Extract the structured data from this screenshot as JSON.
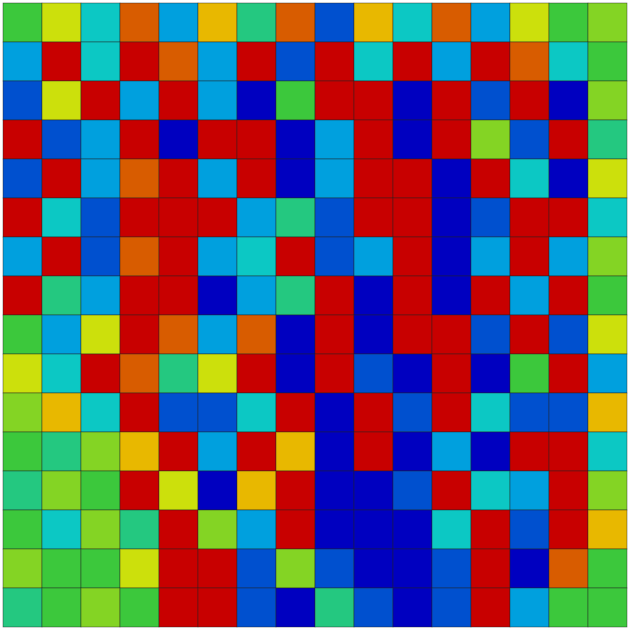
{
  "chart_data": {
    "type": "heatmap",
    "tick_labels": false,
    "zlim": [
      0,
      1
    ],
    "cells": [
      [
        0.5,
        0.7,
        0.3,
        0.9,
        0.2,
        0.8,
        0.4,
        0.9,
        0.1,
        0.8,
        0.3,
        0.9,
        0.2,
        0.7,
        0.5,
        0.6
      ],
      [
        0.2,
        1,
        0.3,
        1,
        0.9,
        0.2,
        1,
        0.1,
        1,
        0.3,
        1,
        0.2,
        1,
        0.9,
        0.3,
        0.5
      ],
      [
        0.1,
        0.7,
        1,
        0.2,
        1,
        0.2,
        0,
        0.5,
        1,
        1,
        0,
        1,
        0.1,
        1,
        0,
        0.6
      ],
      [
        1,
        0.1,
        0.2,
        1,
        0,
        1,
        1,
        0,
        0.2,
        1,
        0,
        1,
        0.6,
        0.1,
        1,
        0.4
      ],
      [
        0.1,
        1,
        0.2,
        0.9,
        1,
        0.2,
        1,
        0,
        0.2,
        1,
        1,
        0,
        1,
        0.3,
        0,
        0.7
      ],
      [
        1,
        0.3,
        0.1,
        1,
        1,
        1,
        0.2,
        0.4,
        0.1,
        1,
        1,
        0,
        0.1,
        1,
        1,
        0.3
      ],
      [
        0.2,
        1,
        0.1,
        0.9,
        1,
        0.2,
        0.3,
        1,
        0.1,
        0.2,
        1,
        0,
        0.2,
        1,
        0.2,
        0.6
      ],
      [
        1,
        0.4,
        0.2,
        1,
        1,
        0,
        0.2,
        0.4,
        1,
        0,
        1,
        0,
        1,
        0.2,
        1,
        0.5
      ],
      [
        0.5,
        0.2,
        0.7,
        1,
        0.9,
        0.2,
        0.9,
        0,
        1,
        0,
        1,
        1,
        0.1,
        1,
        0.1,
        0.7
      ],
      [
        0.7,
        0.3,
        1,
        0.9,
        0.4,
        0.7,
        1,
        0,
        1,
        0.1,
        0,
        1,
        0,
        0.5,
        1,
        0.2
      ],
      [
        0.6,
        0.8,
        0.3,
        1,
        0.1,
        0.1,
        0.3,
        1,
        0,
        1,
        0.1,
        1,
        0.3,
        0.1,
        0.1,
        0.8
      ],
      [
        0.5,
        0.4,
        0.6,
        0.8,
        1,
        0.2,
        1,
        0.8,
        0,
        1,
        0,
        0.2,
        0,
        1,
        1,
        0.3
      ],
      [
        0.4,
        0.6,
        0.5,
        1,
        0.7,
        0,
        0.8,
        1,
        0,
        0,
        0.1,
        1,
        0.3,
        0.2,
        1,
        0.6
      ],
      [
        0.5,
        0.3,
        0.6,
        0.4,
        1,
        0.6,
        0.2,
        1,
        0,
        0,
        0,
        0.3,
        1,
        0.1,
        1,
        0.8
      ],
      [
        0.6,
        0.5,
        0.5,
        0.7,
        1,
        1,
        0.1,
        0.6,
        0.1,
        0,
        0,
        0.1,
        1,
        0,
        0.9,
        0.5
      ],
      [
        0.4,
        0.5,
        0.6,
        0.5,
        1,
        1,
        0.1,
        0,
        0.4,
        0.1,
        0,
        0.1,
        1,
        0.2,
        0.5,
        0.5
      ]
    ]
  }
}
